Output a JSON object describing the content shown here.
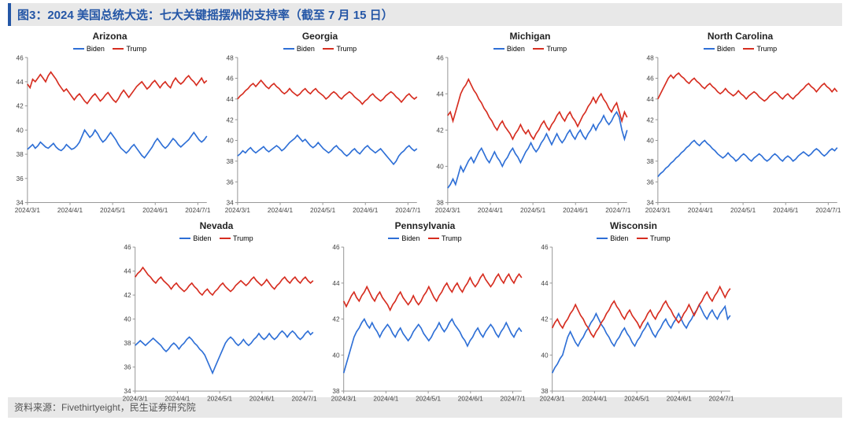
{
  "title": "图3：2024 美国总统大选：七大关键摇摆州的支持率（截至 7 月 15 日）",
  "source": "资料来源：Fivethirtyeight，民生证券研究院",
  "legend": {
    "biden": "Biden",
    "trump": "Trump"
  },
  "colors": {
    "biden": "#2e6fd6",
    "trump": "#d62d20",
    "axis": "#999999",
    "title": "#2456a6",
    "bar_bg": "#e8e8e8",
    "text": "#333333"
  },
  "x_ticks": [
    "2024/3/1",
    "2024/4/1",
    "2024/5/1",
    "2024/6/1",
    "2024/7/1"
  ],
  "panels": [
    {
      "title": "Arizona",
      "row": 1,
      "ylim": [
        34,
        46
      ],
      "ytick_step": 2,
      "biden": [
        38.4,
        38.6,
        38.8,
        38.5,
        38.7,
        39.0,
        38.8,
        38.6,
        38.5,
        38.7,
        38.9,
        38.6,
        38.4,
        38.3,
        38.5,
        38.8,
        38.6,
        38.4,
        38.5,
        38.7,
        39.0,
        39.5,
        40.0,
        39.7,
        39.4,
        39.6,
        40.0,
        39.7,
        39.3,
        39.0,
        39.2,
        39.5,
        39.8,
        39.5,
        39.2,
        38.8,
        38.5,
        38.3,
        38.1,
        38.3,
        38.6,
        38.8,
        38.5,
        38.2,
        37.9,
        37.7,
        38.0,
        38.3,
        38.6,
        39.0,
        39.3,
        39.0,
        38.7,
        38.5,
        38.7,
        39.0,
        39.3,
        39.1,
        38.8,
        38.6,
        38.8,
        39.0,
        39.2,
        39.5,
        39.8,
        39.5,
        39.2,
        39.0,
        39.2,
        39.5
      ],
      "trump": [
        43.8,
        43.5,
        44.2,
        44.0,
        44.3,
        44.6,
        44.3,
        44.0,
        44.5,
        44.8,
        44.5,
        44.2,
        43.8,
        43.5,
        43.2,
        43.4,
        43.1,
        42.8,
        42.5,
        42.8,
        43.0,
        42.7,
        42.4,
        42.2,
        42.5,
        42.8,
        43.0,
        42.7,
        42.4,
        42.6,
        42.9,
        43.1,
        42.8,
        42.5,
        42.3,
        42.6,
        43.0,
        43.3,
        43.0,
        42.7,
        43.0,
        43.3,
        43.6,
        43.8,
        44.0,
        43.7,
        43.4,
        43.6,
        43.9,
        44.1,
        43.8,
        43.5,
        43.8,
        44.0,
        43.7,
        43.5,
        44.0,
        44.3,
        44.0,
        43.8,
        44.0,
        44.3,
        44.5,
        44.2,
        44.0,
        43.7,
        44.0,
        44.3,
        43.9,
        44.1
      ]
    },
    {
      "title": "Georgia",
      "row": 1,
      "ylim": [
        34,
        48
      ],
      "ytick_step": 2,
      "biden": [
        38.5,
        38.7,
        39.0,
        38.8,
        39.1,
        39.3,
        39.0,
        38.8,
        39.0,
        39.2,
        39.4,
        39.1,
        38.9,
        39.1,
        39.3,
        39.5,
        39.3,
        39.0,
        39.2,
        39.5,
        39.8,
        40.0,
        40.2,
        40.5,
        40.2,
        39.9,
        40.1,
        39.8,
        39.5,
        39.3,
        39.5,
        39.8,
        39.5,
        39.2,
        39.0,
        38.8,
        39.0,
        39.3,
        39.5,
        39.2,
        39.0,
        38.7,
        38.5,
        38.7,
        39.0,
        39.2,
        38.9,
        38.7,
        39.0,
        39.3,
        39.5,
        39.2,
        39.0,
        38.8,
        39.0,
        39.2,
        38.9,
        38.6,
        38.3,
        38.0,
        37.7,
        38.0,
        38.5,
        38.8,
        39.0,
        39.3,
        39.5,
        39.2,
        39.0,
        39.2
      ],
      "trump": [
        44.0,
        44.3,
        44.5,
        44.8,
        45.0,
        45.3,
        45.5,
        45.2,
        45.5,
        45.8,
        45.5,
        45.2,
        45.0,
        45.3,
        45.5,
        45.2,
        45.0,
        44.7,
        44.5,
        44.7,
        45.0,
        44.7,
        44.5,
        44.3,
        44.5,
        44.8,
        45.0,
        44.7,
        44.5,
        44.8,
        45.0,
        44.7,
        44.5,
        44.3,
        44.0,
        44.2,
        44.5,
        44.7,
        44.5,
        44.2,
        44.0,
        44.3,
        44.5,
        44.7,
        44.5,
        44.2,
        44.0,
        43.8,
        43.5,
        43.8,
        44.0,
        44.3,
        44.5,
        44.2,
        44.0,
        43.8,
        44.0,
        44.3,
        44.5,
        44.7,
        44.5,
        44.2,
        44.0,
        43.7,
        44.0,
        44.3,
        44.5,
        44.2,
        44.0,
        44.2
      ]
    },
    {
      "title": "Michigan",
      "row": 1,
      "ylim": [
        38,
        46
      ],
      "ytick_step": 2,
      "biden": [
        38.8,
        39.0,
        39.3,
        39.0,
        39.5,
        40.0,
        39.7,
        40.0,
        40.3,
        40.5,
        40.2,
        40.5,
        40.8,
        41.0,
        40.7,
        40.4,
        40.2,
        40.5,
        40.8,
        40.5,
        40.3,
        40.0,
        40.3,
        40.5,
        40.8,
        41.0,
        40.7,
        40.5,
        40.2,
        40.5,
        40.8,
        41.0,
        41.3,
        41.0,
        40.8,
        41.0,
        41.3,
        41.5,
        41.8,
        41.5,
        41.2,
        41.5,
        41.8,
        41.5,
        41.3,
        41.5,
        41.8,
        42.0,
        41.7,
        41.5,
        41.8,
        42.0,
        41.7,
        41.5,
        41.8,
        42.0,
        42.3,
        42.0,
        42.3,
        42.5,
        42.8,
        42.5,
        42.3,
        42.5,
        42.8,
        43.0,
        42.7,
        42.0,
        41.5,
        42.0
      ],
      "trump": [
        42.8,
        43.0,
        42.5,
        43.0,
        43.5,
        44.0,
        44.3,
        44.5,
        44.8,
        44.5,
        44.2,
        44.0,
        43.7,
        43.5,
        43.2,
        43.0,
        42.7,
        42.5,
        42.2,
        42.0,
        42.3,
        42.5,
        42.2,
        42.0,
        41.8,
        41.5,
        41.8,
        42.0,
        42.3,
        42.0,
        41.8,
        42.0,
        41.7,
        41.5,
        41.8,
        42.0,
        42.3,
        42.5,
        42.2,
        42.0,
        42.3,
        42.5,
        42.8,
        43.0,
        42.7,
        42.5,
        42.8,
        43.0,
        42.7,
        42.5,
        42.2,
        42.5,
        42.8,
        43.0,
        43.3,
        43.5,
        43.8,
        43.5,
        43.8,
        44.0,
        43.7,
        43.5,
        43.2,
        43.0,
        43.3,
        43.5,
        43.0,
        42.5,
        43.0,
        42.7
      ]
    },
    {
      "title": "North Carolina",
      "row": 1,
      "ylim": [
        34,
        48
      ],
      "ytick_step": 2,
      "biden": [
        36.5,
        36.8,
        37.0,
        37.3,
        37.5,
        37.8,
        38.0,
        38.3,
        38.5,
        38.8,
        39.0,
        39.3,
        39.5,
        39.8,
        40.0,
        39.7,
        39.5,
        39.8,
        40.0,
        39.7,
        39.5,
        39.2,
        39.0,
        38.7,
        38.5,
        38.3,
        38.5,
        38.8,
        38.5,
        38.3,
        38.0,
        38.2,
        38.5,
        38.7,
        38.5,
        38.2,
        38.0,
        38.3,
        38.5,
        38.7,
        38.5,
        38.2,
        38.0,
        38.2,
        38.5,
        38.7,
        38.5,
        38.2,
        38.0,
        38.3,
        38.5,
        38.3,
        38.0,
        38.2,
        38.5,
        38.7,
        38.9,
        38.7,
        38.5,
        38.7,
        39.0,
        39.2,
        39.0,
        38.7,
        38.5,
        38.7,
        39.0,
        39.2,
        39.0,
        39.3
      ],
      "trump": [
        44.0,
        44.5,
        45.0,
        45.5,
        46.0,
        46.3,
        46.0,
        46.3,
        46.5,
        46.2,
        46.0,
        45.7,
        45.5,
        45.8,
        46.0,
        45.7,
        45.5,
        45.2,
        45.0,
        45.3,
        45.5,
        45.2,
        45.0,
        44.7,
        44.5,
        44.7,
        45.0,
        44.7,
        44.5,
        44.3,
        44.5,
        44.8,
        44.5,
        44.3,
        44.0,
        44.3,
        44.5,
        44.7,
        44.5,
        44.2,
        44.0,
        43.8,
        44.0,
        44.3,
        44.5,
        44.7,
        44.5,
        44.2,
        44.0,
        44.3,
        44.5,
        44.2,
        44.0,
        44.3,
        44.5,
        44.8,
        45.0,
        45.3,
        45.5,
        45.2,
        45.0,
        44.7,
        45.0,
        45.3,
        45.5,
        45.2,
        45.0,
        44.7,
        45.0,
        44.7
      ]
    },
    {
      "title": "Nevada",
      "row": 2,
      "ylim": [
        34,
        46
      ],
      "ytick_step": 2,
      "biden": [
        37.8,
        38.0,
        38.2,
        38.0,
        37.8,
        38.0,
        38.2,
        38.4,
        38.2,
        38.0,
        37.8,
        37.5,
        37.3,
        37.5,
        37.8,
        38.0,
        37.8,
        37.5,
        37.8,
        38.0,
        38.3,
        38.5,
        38.3,
        38.0,
        37.8,
        37.5,
        37.3,
        37.0,
        36.5,
        36.0,
        35.5,
        36.0,
        36.5,
        37.0,
        37.5,
        38.0,
        38.3,
        38.5,
        38.3,
        38.0,
        37.8,
        38.0,
        38.3,
        38.0,
        37.8,
        38.0,
        38.3,
        38.5,
        38.8,
        38.5,
        38.3,
        38.5,
        38.8,
        38.5,
        38.3,
        38.5,
        38.8,
        39.0,
        38.8,
        38.5,
        38.8,
        39.0,
        38.8,
        38.5,
        38.3,
        38.5,
        38.8,
        39.0,
        38.7,
        38.9
      ],
      "trump": [
        43.5,
        43.8,
        44.0,
        44.3,
        44.0,
        43.7,
        43.5,
        43.2,
        43.0,
        43.3,
        43.5,
        43.2,
        43.0,
        42.8,
        42.5,
        42.8,
        43.0,
        42.7,
        42.5,
        42.3,
        42.5,
        42.8,
        43.0,
        42.7,
        42.5,
        42.2,
        42.0,
        42.3,
        42.5,
        42.2,
        42.0,
        42.3,
        42.5,
        42.8,
        43.0,
        42.7,
        42.5,
        42.3,
        42.5,
        42.8,
        43.0,
        43.2,
        43.0,
        42.8,
        43.0,
        43.3,
        43.5,
        43.2,
        43.0,
        42.8,
        43.0,
        43.3,
        43.0,
        42.7,
        42.5,
        42.8,
        43.0,
        43.3,
        43.5,
        43.2,
        43.0,
        43.3,
        43.5,
        43.2,
        43.0,
        43.3,
        43.5,
        43.2,
        43.0,
        43.2
      ]
    },
    {
      "title": "Pennsylvania",
      "row": 2,
      "ylim": [
        38,
        46
      ],
      "ytick_step": 2,
      "biden": [
        39.0,
        39.5,
        40.0,
        40.5,
        41.0,
        41.3,
        41.5,
        41.8,
        42.0,
        41.7,
        41.5,
        41.8,
        41.5,
        41.3,
        41.0,
        41.3,
        41.5,
        41.7,
        41.5,
        41.2,
        41.0,
        41.3,
        41.5,
        41.2,
        41.0,
        40.8,
        41.0,
        41.3,
        41.5,
        41.7,
        41.5,
        41.2,
        41.0,
        40.8,
        41.0,
        41.3,
        41.5,
        41.8,
        41.5,
        41.3,
        41.5,
        41.8,
        42.0,
        41.7,
        41.5,
        41.3,
        41.0,
        40.8,
        40.5,
        40.8,
        41.0,
        41.3,
        41.5,
        41.2,
        41.0,
        41.3,
        41.5,
        41.7,
        41.5,
        41.2,
        41.0,
        41.3,
        41.5,
        41.8,
        41.5,
        41.2,
        41.0,
        41.3,
        41.5,
        41.3
      ],
      "trump": [
        43.0,
        42.7,
        43.0,
        43.3,
        43.5,
        43.2,
        43.0,
        43.3,
        43.5,
        43.8,
        43.5,
        43.2,
        43.0,
        43.3,
        43.5,
        43.2,
        43.0,
        42.8,
        42.5,
        42.8,
        43.0,
        43.3,
        43.5,
        43.2,
        43.0,
        42.8,
        43.0,
        43.3,
        43.0,
        42.8,
        43.0,
        43.3,
        43.5,
        43.8,
        43.5,
        43.2,
        43.0,
        43.3,
        43.5,
        43.8,
        44.0,
        43.7,
        43.5,
        43.8,
        44.0,
        43.7,
        43.5,
        43.8,
        44.0,
        44.3,
        44.0,
        43.8,
        44.0,
        44.3,
        44.5,
        44.2,
        44.0,
        43.8,
        44.0,
        44.3,
        44.5,
        44.2,
        44.0,
        44.3,
        44.5,
        44.2,
        44.0,
        44.3,
        44.5,
        44.3
      ]
    },
    {
      "title": "Wisconsin",
      "row": 2,
      "ylim": [
        38,
        46
      ],
      "ytick_step": 2,
      "biden": [
        39.0,
        39.3,
        39.5,
        39.8,
        40.0,
        40.5,
        41.0,
        41.3,
        41.0,
        40.7,
        40.5,
        40.8,
        41.0,
        41.3,
        41.5,
        41.8,
        42.0,
        42.3,
        42.0,
        41.7,
        41.5,
        41.2,
        41.0,
        40.7,
        40.5,
        40.8,
        41.0,
        41.3,
        41.5,
        41.2,
        41.0,
        40.7,
        40.5,
        40.8,
        41.0,
        41.3,
        41.5,
        41.8,
        41.5,
        41.2,
        41.0,
        41.3,
        41.5,
        41.8,
        42.0,
        41.7,
        41.5,
        41.8,
        42.0,
        42.3,
        42.0,
        41.7,
        41.5,
        41.8,
        42.0,
        42.3,
        42.5,
        42.8,
        42.5,
        42.2,
        42.0,
        42.3,
        42.5,
        42.2,
        42.0,
        42.3,
        42.5,
        42.7,
        42.0,
        42.2
      ],
      "trump": [
        41.5,
        41.8,
        42.0,
        41.7,
        41.5,
        41.8,
        42.0,
        42.3,
        42.5,
        42.8,
        42.5,
        42.2,
        42.0,
        41.7,
        41.5,
        41.2,
        41.0,
        41.3,
        41.5,
        41.8,
        42.0,
        42.3,
        42.5,
        42.8,
        43.0,
        42.7,
        42.5,
        42.2,
        42.0,
        42.3,
        42.5,
        42.2,
        42.0,
        41.8,
        41.5,
        41.8,
        42.0,
        42.3,
        42.5,
        42.2,
        42.0,
        42.3,
        42.5,
        42.8,
        43.0,
        42.7,
        42.5,
        42.2,
        42.0,
        41.8,
        42.0,
        42.3,
        42.5,
        42.8,
        42.5,
        42.2,
        42.5,
        42.8,
        43.0,
        43.3,
        43.5,
        43.2,
        43.0,
        43.3,
        43.5,
        43.8,
        43.5,
        43.2,
        43.5,
        43.7
      ]
    }
  ]
}
